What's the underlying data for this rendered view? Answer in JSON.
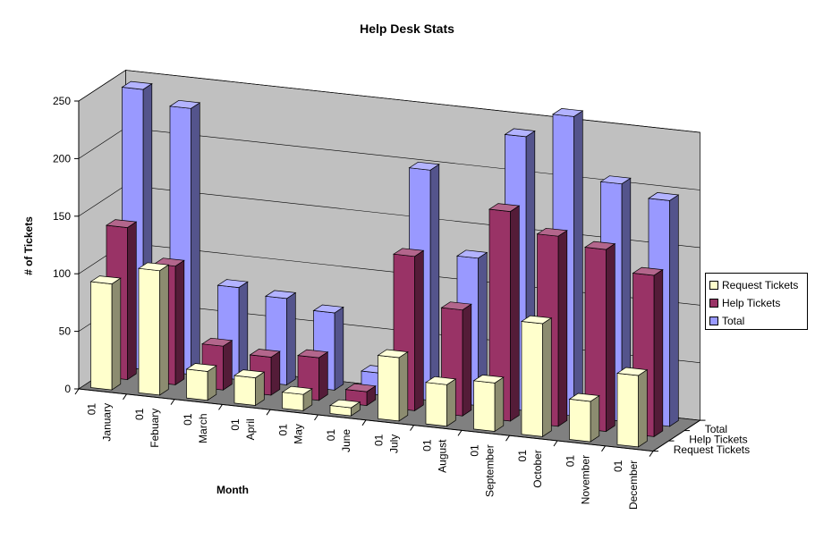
{
  "chart_data": {
    "type": "bar",
    "subtype": "3d-column",
    "title": "Help Desk Stats",
    "xlabel": "Month",
    "ylabel": "# of Tickets",
    "ylim": [
      0,
      250
    ],
    "yticks": [
      "0",
      "50",
      "100",
      "150",
      "200",
      "250"
    ],
    "grid": true,
    "legend_position": "right",
    "categories": [
      {
        "day": "01",
        "month": "January"
      },
      {
        "day": "01",
        "month": "Febuary"
      },
      {
        "day": "01",
        "month": "March"
      },
      {
        "day": "01",
        "month": "April"
      },
      {
        "day": "01",
        "month": "May"
      },
      {
        "day": "01",
        "month": "June"
      },
      {
        "day": "01",
        "month": "July"
      },
      {
        "day": "01",
        "month": "August"
      },
      {
        "day": "01",
        "month": "September"
      },
      {
        "day": "01",
        "month": "October"
      },
      {
        "day": "01",
        "month": "November"
      },
      {
        "day": "01",
        "month": "December"
      }
    ],
    "series": [
      {
        "name": "Request Tickets",
        "color": "#FFFFCC",
        "values": [
          92,
          108,
          25,
          24,
          14,
          7,
          55,
          36,
          42,
          98,
          35,
          62
        ]
      },
      {
        "name": "Help Tickets",
        "color": "#993366",
        "values": [
          132,
          103,
          38,
          33,
          37,
          12,
          134,
          92,
          182,
          165,
          158,
          140
        ]
      },
      {
        "name": "Total",
        "color": "#9999FF",
        "values": [
          243,
          231,
          80,
          75,
          67,
          19,
          200,
          128,
          238,
          260,
          206,
          196
        ]
      }
    ]
  }
}
